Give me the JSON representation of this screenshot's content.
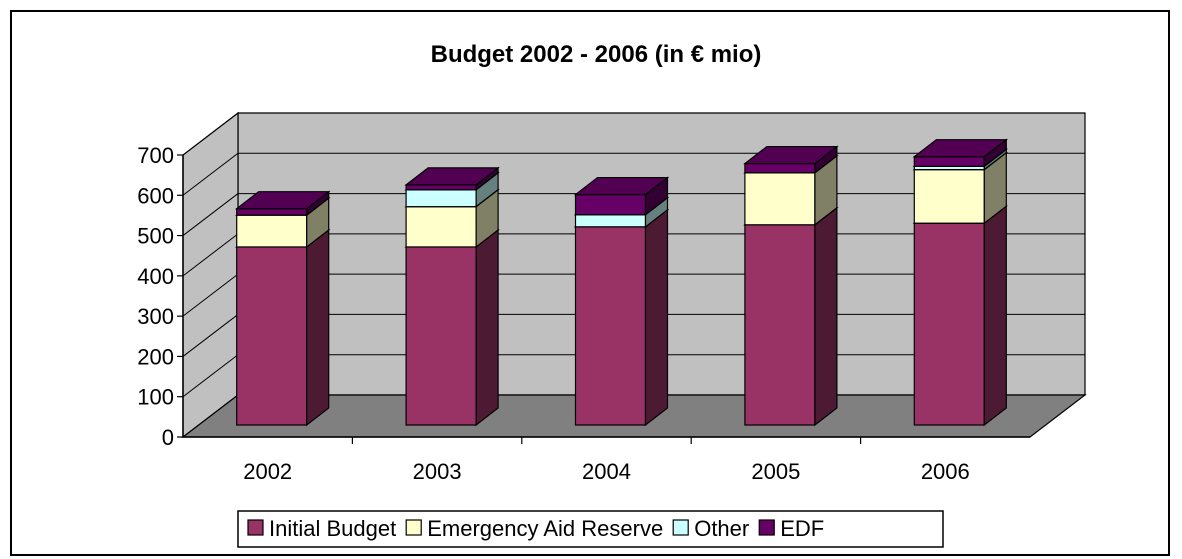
{
  "chart_data": {
    "type": "bar",
    "stacked": true,
    "three_d": true,
    "title": "Budget 2002 - 2006 (in € mio)",
    "xlabel": "",
    "ylabel": "",
    "categories": [
      "2002",
      "2003",
      "2004",
      "2005",
      "2006"
    ],
    "ylim": [
      0,
      700
    ],
    "yticks": [
      "0",
      "100",
      "200",
      "300",
      "400",
      "500",
      "600",
      "700"
    ],
    "grid": true,
    "legend_position": "bottom",
    "series": [
      {
        "name": "Initial Budget",
        "color": "#993366",
        "values": [
          442,
          442,
          492,
          497,
          501
        ]
      },
      {
        "name": "Emergency Aid Reserve",
        "color": "#FFFFCC",
        "values": [
          79,
          100,
          0,
          129,
          133
        ]
      },
      {
        "name": "Other",
        "color": "#CCFFFF",
        "values": [
          0,
          42,
          30,
          0,
          8
        ]
      },
      {
        "name": "EDF",
        "color": "#660066",
        "values": [
          16,
          12,
          50,
          23,
          24
        ]
      }
    ]
  }
}
